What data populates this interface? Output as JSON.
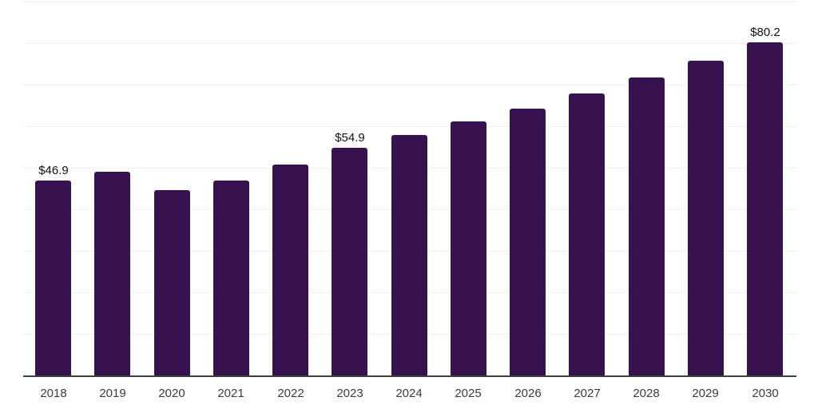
{
  "chart_data": {
    "type": "bar",
    "title": "",
    "xlabel": "",
    "ylabel": "",
    "categories": [
      "2018",
      "2019",
      "2020",
      "2021",
      "2022",
      "2023",
      "2024",
      "2025",
      "2026",
      "2027",
      "2028",
      "2029",
      "2030"
    ],
    "values": [
      46.9,
      49.1,
      44.6,
      47.0,
      50.7,
      54.9,
      57.9,
      61.1,
      64.2,
      67.9,
      71.7,
      75.8,
      80.2
    ],
    "data_labels": [
      {
        "index": 0,
        "label": "$46.9"
      },
      {
        "index": 5,
        "label": "$54.9"
      },
      {
        "index": 12,
        "label": "$80.2"
      }
    ],
    "ylim": [
      0,
      90
    ],
    "grid": true,
    "grid_step": 10,
    "legend": false,
    "y_tick_labels_shown": false,
    "colors": {
      "bar": "#36124f",
      "gridline": "#f1f1f1",
      "axis_line": "#3f3f3f",
      "tick_label": "#3b3b3b",
      "data_label": "#111111",
      "background": "#ffffff"
    }
  }
}
